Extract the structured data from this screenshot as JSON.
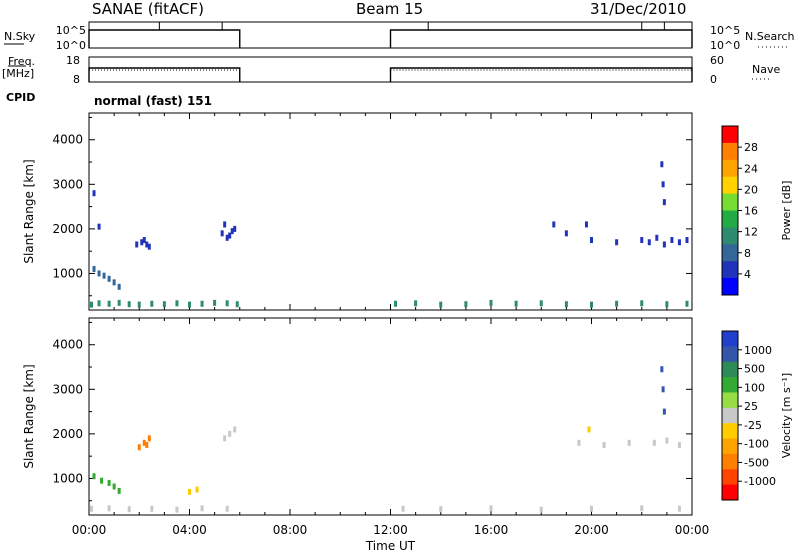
{
  "header": {
    "station": "SANAE (fitACF)",
    "beam": "Beam 15",
    "date": "31/Dec/2010"
  },
  "chart_data": [
    {
      "type": "line",
      "name": "nsky-nsearch",
      "left_label": "N.Sky",
      "right_label": "N.Search",
      "left_ticks": [
        "10^5",
        "10^0"
      ],
      "right_ticks": [
        "10^5",
        "10^0"
      ],
      "segments": [
        {
          "start_h": 0.0,
          "end_h": 6.0,
          "level": "high"
        },
        {
          "start_h": 12.0,
          "end_h": 24.0,
          "level": "high"
        }
      ]
    },
    {
      "type": "line",
      "name": "freq-nave",
      "left_label": "Freq.",
      "left_unit": "[MHz]",
      "right_label": "Nave",
      "left_ticks": [
        "18",
        "8"
      ],
      "right_ticks": [
        "60",
        "0"
      ],
      "segments": [
        {
          "start_h": 0.0,
          "end_h": 6.0
        },
        {
          "start_h": 12.0,
          "end_h": 24.0
        }
      ]
    },
    {
      "type": "table",
      "name": "cpid",
      "label": "CPID",
      "value": "normal (fast) 151"
    },
    {
      "type": "scatter",
      "name": "power",
      "ylabel": "Slant Range [km]",
      "y_ticks": [
        "4000",
        "3000",
        "2000",
        "1000"
      ],
      "ylim": [
        180,
        4600
      ],
      "xlim": [
        0,
        24
      ],
      "colorbar": {
        "label": "Power [dB]",
        "ticks": [
          "28",
          "24",
          "20",
          "16",
          "12",
          "8",
          "4"
        ],
        "colors": [
          "#ff0000",
          "#ff7f00",
          "#ffa300",
          "#ffd200",
          "#77dd33",
          "#22aa44",
          "#2e8b6e",
          "#336699",
          "#2233bb",
          "#0000ff"
        ]
      },
      "series": [
        {
          "name": "near-range band",
          "x": [
            0.1,
            0.4,
            0.8,
            1.2,
            1.6,
            2.0,
            2.5,
            3.0,
            3.5,
            4.0,
            4.5,
            5.0,
            5.5,
            5.9,
            12.2,
            13.0,
            14.0,
            15.0,
            16.0,
            17.0,
            18.0,
            19.0,
            20.0,
            21.0,
            22.0,
            23.0,
            23.8
          ],
          "y": [
            300,
            330,
            320,
            340,
            310,
            300,
            320,
            310,
            330,
            300,
            320,
            340,
            330,
            310,
            320,
            330,
            300,
            310,
            340,
            320,
            330,
            310,
            300,
            320,
            330,
            310,
            320
          ],
          "level": 6
        },
        {
          "name": "early-patch",
          "x": [
            0.2,
            0.4,
            0.6,
            0.8,
            1.0,
            1.2
          ],
          "y": [
            1100,
            1000,
            950,
            880,
            800,
            700
          ],
          "level": 7
        },
        {
          "name": "scatter-early",
          "x": [
            0.2,
            0.4,
            1.9,
            2.1,
            2.2,
            2.3,
            2.4,
            5.3,
            5.4,
            5.5,
            5.6,
            5.7,
            5.8
          ],
          "y": [
            2800,
            2050,
            1650,
            1700,
            1750,
            1650,
            1600,
            1900,
            2100,
            1800,
            1850,
            1950,
            2000
          ],
          "level": 8
        },
        {
          "name": "scatter-late",
          "x": [
            18.5,
            19.0,
            19.8,
            20.0,
            21.0,
            22.0,
            22.3,
            22.6,
            22.9,
            23.2,
            23.5,
            23.8
          ],
          "y": [
            2100,
            1900,
            2100,
            1750,
            1700,
            1750,
            1700,
            1800,
            1650,
            1750,
            1700,
            1750
          ],
          "level": 8
        },
        {
          "name": "spike-late",
          "x": [
            22.8,
            22.85,
            22.9
          ],
          "y": [
            3450,
            3000,
            2600
          ],
          "level": 8
        }
      ]
    },
    {
      "type": "scatter",
      "name": "velocity",
      "ylabel": "Slant Range [km]",
      "xlabel": "Time UT",
      "y_ticks": [
        "4000",
        "3000",
        "2000",
        "1000"
      ],
      "x_ticks": [
        "00:00",
        "04:00",
        "08:00",
        "12:00",
        "16:00",
        "20:00",
        "00:00"
      ],
      "ylim": [
        180,
        4600
      ],
      "xlim": [
        0,
        24
      ],
      "colorbar": {
        "label": "Velocity [m s^-1]",
        "ticks": [
          "1000",
          "500",
          "100",
          "25",
          "-25",
          "-100",
          "-500",
          "-1000"
        ],
        "colors": [
          "#1f3fcc",
          "#3355aa",
          "#2e8b57",
          "#33aa33",
          "#99dd44",
          "#c8c8c8",
          "#ffcc00",
          "#ffa300",
          "#ff7f00",
          "#ff4400",
          "#ff0000"
        ]
      },
      "series": [
        {
          "name": "near-range band",
          "x": [
            0.1,
            0.8,
            1.6,
            2.5,
            3.5,
            4.5,
            5.5,
            12.5,
            14.0,
            16.0,
            18.0,
            20.0,
            22.0,
            23.5
          ],
          "y": [
            320,
            330,
            310,
            320,
            300,
            330,
            320,
            320,
            310,
            330,
            300,
            320,
            330,
            320
          ],
          "level": 5
        },
        {
          "name": "early-green",
          "x": [
            0.2,
            0.5,
            0.8,
            1.0,
            1.2
          ],
          "y": [
            1050,
            950,
            900,
            820,
            720
          ],
          "level": 3
        },
        {
          "name": "orange-patch",
          "x": [
            2.0,
            2.2,
            2.3,
            2.4
          ],
          "y": [
            1700,
            1800,
            1750,
            1900
          ],
          "level": 8
        },
        {
          "name": "grey-patches",
          "x": [
            5.4,
            5.6,
            5.8,
            19.5,
            20.5,
            21.5,
            22.5,
            23.0,
            23.5
          ],
          "y": [
            1900,
            2000,
            2100,
            1800,
            1750,
            1800,
            1800,
            1850,
            1750
          ],
          "level": 5
        },
        {
          "name": "yellow-bits",
          "x": [
            4.0,
            4.3,
            19.9
          ],
          "y": [
            700,
            750,
            2100
          ],
          "level": 6
        },
        {
          "name": "spike-late",
          "x": [
            22.8,
            22.85,
            22.9
          ],
          "y": [
            3450,
            3000,
            2500
          ],
          "level": 1
        }
      ]
    }
  ]
}
